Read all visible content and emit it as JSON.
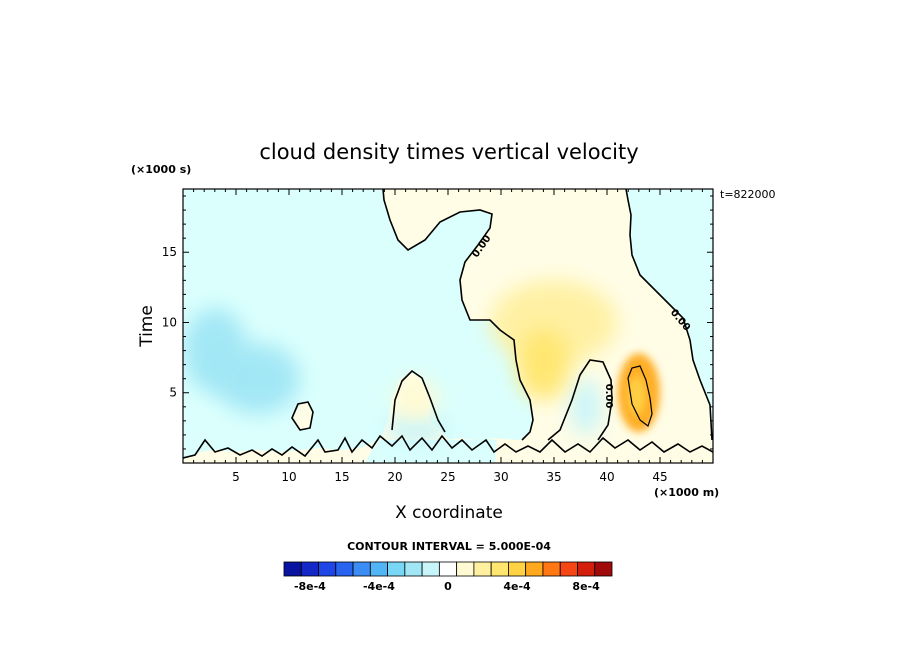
{
  "chart_data": {
    "type": "heatmap",
    "title": "cloud density times vertical velocity",
    "xlabel": "X coordinate",
    "ylabel": "Time",
    "x_unit": "(×1000 m)",
    "y_unit": "(×1000 s)",
    "timestamp": "t=822000",
    "contour_interval": "CONTOUR INTERVAL = 5.000E-04",
    "xlim": [
      0,
      50
    ],
    "ylim": [
      0,
      19.5
    ],
    "x_ticks": [
      5,
      10,
      15,
      20,
      25,
      30,
      35,
      40,
      45
    ],
    "y_ticks": [
      5,
      10,
      15
    ],
    "contour_labels": [
      "0.00",
      "0.00",
      "0.00"
    ],
    "colorbar": {
      "colors": [
        "#0a14a0",
        "#1428c8",
        "#1e46e6",
        "#2864f0",
        "#3c8cf5",
        "#50b4f5",
        "#78d7f5",
        "#a0e6f5",
        "#c8f5fa",
        "#ffffff",
        "#fffad2",
        "#fff0a0",
        "#ffe66e",
        "#ffd246",
        "#ffaa1e",
        "#ff7814",
        "#f54614",
        "#d21e0a",
        "#a00a0a"
      ],
      "tick_labels": [
        "-8e-4",
        "-4e-4",
        "0",
        "4e-4",
        "8e-4"
      ],
      "tick_values": [
        -0.0008,
        -0.0004,
        0,
        0.0004,
        0.0008
      ]
    },
    "features": [
      {
        "kind": "negative",
        "x": 3,
        "y": 8,
        "sx": 3,
        "sy": 3,
        "value": -0.00025
      },
      {
        "kind": "negative",
        "x": 7,
        "y": 6,
        "sx": 4,
        "sy": 2.5,
        "value": -0.0002
      },
      {
        "kind": "negative",
        "x": 22,
        "y": 2.5,
        "sx": 3,
        "sy": 1.2,
        "value": -0.0001
      },
      {
        "kind": "negative",
        "x": 38,
        "y": 4,
        "sx": 1.5,
        "sy": 2,
        "value": -0.0001
      },
      {
        "kind": "positive",
        "x": 35,
        "y": 10,
        "sx": 6,
        "sy": 3,
        "value": 0.0002
      },
      {
        "kind": "positive",
        "x": 34,
        "y": 7,
        "sx": 2.5,
        "sy": 2.5,
        "value": 0.0003
      },
      {
        "kind": "positive",
        "x": 22,
        "y": 4.5,
        "sx": 2,
        "sy": 1.5,
        "value": 0.00015
      },
      {
        "kind": "positive",
        "x": 43,
        "y": 5,
        "sx": 2,
        "sy": 2.8,
        "value": 0.0005
      },
      {
        "kind": "positive",
        "x": 42.8,
        "y": 4.8,
        "sx": 0.8,
        "sy": 1.4,
        "value": 0.0004
      }
    ],
    "grid": false
  }
}
